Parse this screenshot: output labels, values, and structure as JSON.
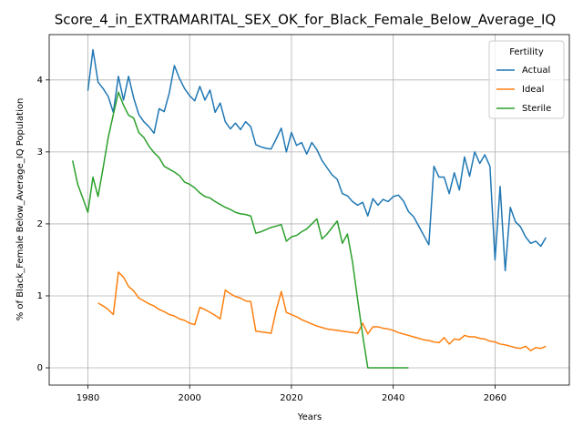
{
  "chart_data": {
    "type": "line",
    "title": "Score_4_in_EXTRAMARITAL_SEX_OK_for_Black_Female_Below_Average_IQ",
    "x_label": "Years",
    "y_label": "% of Black_Female Below_Average_IQ Population",
    "legend_title": "Fertility",
    "legend_loc": "upper right",
    "grid": true,
    "xlim": [
      1972.4,
      2074.6
    ],
    "ylim": [
      -0.24,
      4.63
    ],
    "xticks": [
      1980,
      2000,
      2020,
      2040,
      2060
    ],
    "yticks": [
      0,
      1,
      2,
      3,
      4
    ],
    "x": [
      1977,
      1978,
      1979,
      1980,
      1981,
      1982,
      1983,
      1984,
      1985,
      1986,
      1987,
      1988,
      1989,
      1990,
      1991,
      1992,
      1993,
      1994,
      1995,
      1996,
      1997,
      1998,
      1999,
      2000,
      2001,
      2002,
      2003,
      2004,
      2005,
      2006,
      2007,
      2008,
      2009,
      2010,
      2011,
      2012,
      2013,
      2014,
      2015,
      2016,
      2017,
      2018,
      2019,
      2020,
      2021,
      2022,
      2023,
      2024,
      2025,
      2026,
      2027,
      2028,
      2029,
      2030,
      2031,
      2032,
      2033,
      2034,
      2035,
      2036,
      2037,
      2038,
      2039,
      2040,
      2041,
      2042,
      2043,
      2044,
      2045,
      2046,
      2047,
      2048,
      2049,
      2050,
      2051,
      2052,
      2053,
      2054,
      2055,
      2056,
      2057,
      2058,
      2059,
      2060,
      2061,
      2062,
      2063,
      2064,
      2065,
      2066,
      2067,
      2068,
      2069,
      2070
    ],
    "series": [
      {
        "name": "Actual",
        "color": "#1f77b4",
        "values": [
          null,
          null,
          null,
          3.85,
          4.42,
          3.97,
          3.88,
          3.77,
          3.55,
          4.05,
          3.72,
          4.05,
          3.75,
          3.52,
          3.42,
          3.35,
          3.26,
          3.6,
          3.56,
          3.82,
          4.2,
          4.02,
          3.88,
          3.78,
          3.71,
          3.91,
          3.72,
          3.86,
          3.55,
          3.68,
          3.42,
          3.32,
          3.4,
          3.31,
          3.42,
          3.35,
          3.1,
          3.07,
          3.05,
          3.04,
          3.18,
          3.33,
          3.0,
          3.27,
          3.09,
          3.13,
          2.97,
          3.13,
          3.03,
          2.88,
          2.78,
          2.68,
          2.62,
          2.42,
          2.39,
          2.31,
          2.26,
          2.3,
          2.11,
          2.35,
          2.26,
          2.34,
          2.31,
          2.38,
          2.4,
          2.32,
          2.17,
          2.1,
          1.97,
          1.84,
          1.71,
          2.8,
          2.65,
          2.65,
          2.42,
          2.71,
          2.47,
          2.93,
          2.66,
          3.0,
          2.84,
          2.96,
          2.8,
          1.5,
          2.52,
          1.35,
          2.23,
          2.03,
          1.96,
          1.82,
          1.73,
          1.76,
          1.69,
          1.81
        ]
      },
      {
        "name": "Ideal",
        "color": "#ff7f0e",
        "values": [
          null,
          null,
          null,
          null,
          null,
          0.9,
          0.86,
          0.81,
          0.74,
          1.33,
          1.26,
          1.13,
          1.07,
          0.97,
          0.93,
          0.89,
          0.86,
          0.81,
          0.78,
          0.74,
          0.72,
          0.68,
          0.66,
          0.62,
          0.6,
          0.84,
          0.81,
          0.77,
          0.73,
          0.68,
          1.08,
          1.03,
          0.99,
          0.97,
          0.93,
          0.92,
          0.51,
          0.5,
          0.49,
          0.48,
          0.8,
          1.06,
          0.77,
          0.74,
          0.71,
          0.67,
          0.64,
          0.61,
          0.58,
          0.56,
          0.54,
          0.53,
          0.52,
          0.51,
          0.5,
          0.49,
          0.48,
          0.62,
          0.47,
          0.57,
          0.57,
          0.55,
          0.54,
          0.52,
          0.49,
          0.47,
          0.45,
          0.43,
          0.41,
          0.39,
          0.38,
          0.36,
          0.35,
          0.42,
          0.33,
          0.4,
          0.39,
          0.45,
          0.43,
          0.43,
          0.41,
          0.4,
          0.37,
          0.36,
          0.33,
          0.32,
          0.3,
          0.28,
          0.27,
          0.3,
          0.24,
          0.28,
          0.27,
          0.3
        ]
      },
      {
        "name": "Sterile",
        "color": "#2ca02c",
        "values": [
          2.88,
          2.55,
          2.36,
          2.16,
          2.65,
          2.38,
          2.78,
          3.2,
          3.52,
          3.83,
          3.65,
          3.51,
          3.47,
          3.27,
          3.2,
          3.08,
          2.99,
          2.92,
          2.8,
          2.76,
          2.72,
          2.67,
          2.58,
          2.55,
          2.5,
          2.43,
          2.38,
          2.36,
          2.31,
          2.27,
          2.23,
          2.2,
          2.16,
          2.14,
          2.13,
          2.11,
          1.87,
          1.89,
          1.92,
          1.95,
          1.97,
          1.99,
          1.76,
          1.82,
          1.84,
          1.89,
          1.93,
          2.0,
          2.07,
          1.79,
          1.86,
          1.95,
          2.04,
          1.73,
          1.86,
          1.47,
          0.95,
          0.45,
          0,
          0,
          0,
          0,
          0,
          0,
          0,
          0,
          0,
          null,
          null,
          null,
          null,
          null,
          null,
          null,
          null,
          null,
          null,
          null,
          null,
          null,
          null,
          null,
          null,
          null,
          null,
          null,
          null,
          null,
          null,
          null,
          null,
          null,
          null,
          null
        ]
      }
    ]
  }
}
